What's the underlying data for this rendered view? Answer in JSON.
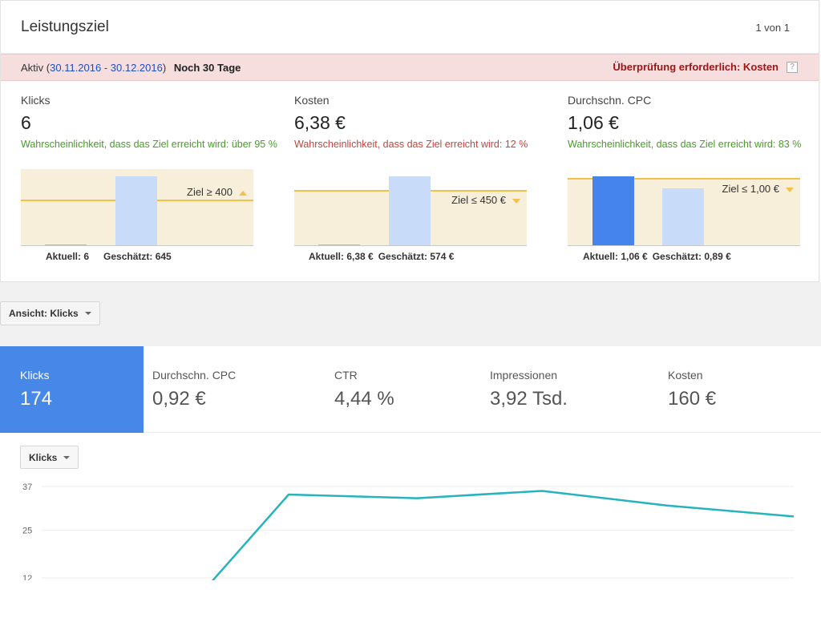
{
  "goal": {
    "title": "Leistungsziel",
    "pager": "1 von 1",
    "status": {
      "active_prefix": "Aktiv (",
      "date_range": "30.11.2016 - 30.12.2016",
      "active_suffix": ")",
      "remaining": "Noch 30 Tage",
      "review": "Überprüfung erforderlich: Kosten",
      "help": "?"
    },
    "metrics": [
      {
        "label": "Klicks",
        "value": "6",
        "probability": "Wahrscheinlichkeit, dass das Ziel erreicht wird: über 95 %",
        "goal_label": "Ziel ≥ 400",
        "actual": "Aktuell: 6",
        "estimated": "Geschätzt: 645"
      },
      {
        "label": "Kosten",
        "value": "6,38 €",
        "probability": "Wahrscheinlichkeit, dass das Ziel erreicht wird: 12 %",
        "goal_label": "Ziel ≤ 450 €",
        "actual": "Aktuell: 6,38 €",
        "estimated": "Geschätzt: 574 €"
      },
      {
        "label": "Durchschn. CPC",
        "value": "1,06 €",
        "probability": "Wahrscheinlichkeit, dass das Ziel erreicht wird: 83 %",
        "goal_label": "Ziel ≤ 1,00 €",
        "actual": "Aktuell: 1,06 €",
        "estimated": "Geschätzt: 0,89 €"
      }
    ]
  },
  "view_selector": {
    "label": "Ansicht: Klicks"
  },
  "scorecards": [
    {
      "label": "Klicks",
      "value": "174"
    },
    {
      "label": "Durchschn. CPC",
      "value": "0,92 €"
    },
    {
      "label": "CTR",
      "value": "4,44 %"
    },
    {
      "label": "Impressionen",
      "value": "3,92 Tsd."
    },
    {
      "label": "Kosten",
      "value": "160 €"
    }
  ],
  "chart_metric_selector": {
    "label": "Klicks"
  },
  "colors": {
    "accent_blue": "#4687e8",
    "goal_line": "#f2c14a",
    "line_series": "#26b3bd",
    "good": "#4a9a2e",
    "bad": "#c0463e"
  },
  "chart_data": {
    "type": "line",
    "y_ticks": [
      "37",
      "25",
      "12"
    ],
    "y_tick_values": [
      37,
      25,
      12
    ],
    "ylim": [
      12,
      37
    ],
    "grid": true,
    "series": [
      {
        "values": [
          5,
          34.8,
          33.8,
          35.8,
          31.8,
          28.8
        ]
      }
    ]
  }
}
